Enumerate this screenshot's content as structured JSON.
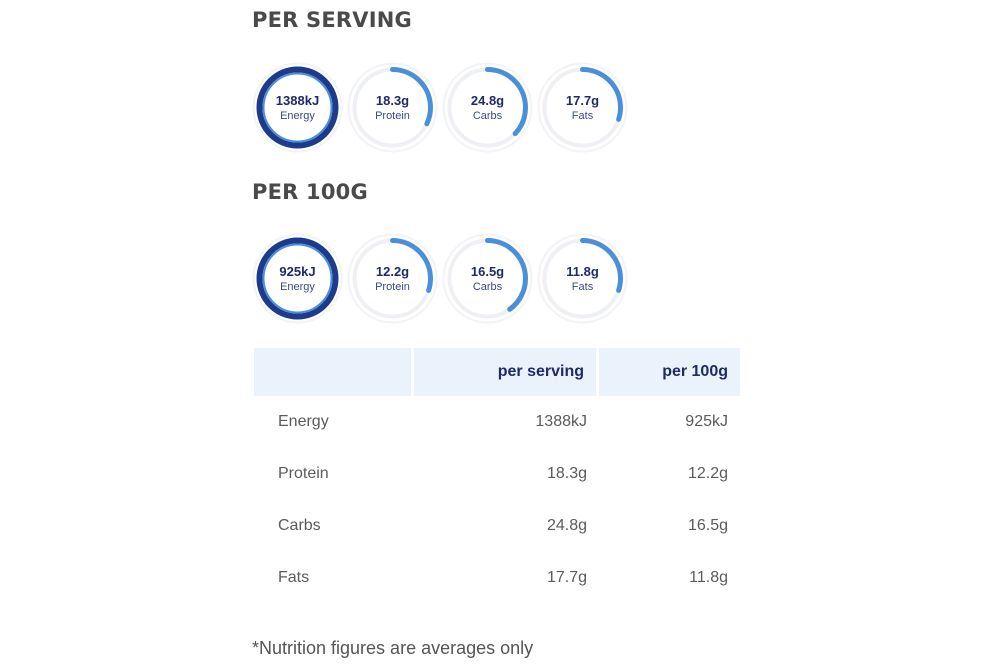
{
  "sections": {
    "per_serving": {
      "title": "PER SERVING",
      "rings": [
        {
          "value": "1388kJ",
          "label": "Energy",
          "progress": 1.0,
          "strong": true
        },
        {
          "value": "18.3g",
          "label": "Protein",
          "progress": 0.32,
          "strong": false
        },
        {
          "value": "24.8g",
          "label": "Carbs",
          "progress": 0.37,
          "strong": false
        },
        {
          "value": "17.7g",
          "label": "Fats",
          "progress": 0.3,
          "strong": false
        }
      ]
    },
    "per_100g": {
      "title": "PER 100G",
      "rings": [
        {
          "value": "925kJ",
          "label": "Energy",
          "progress": 1.0,
          "strong": true
        },
        {
          "value": "12.2g",
          "label": "Protein",
          "progress": 0.3,
          "strong": false
        },
        {
          "value": "16.5g",
          "label": "Carbs",
          "progress": 0.4,
          "strong": false
        },
        {
          "value": "11.8g",
          "label": "Fats",
          "progress": 0.3,
          "strong": false
        }
      ]
    }
  },
  "table": {
    "headers": [
      "",
      "per serving",
      "per 100g"
    ],
    "rows": [
      {
        "name": "Energy",
        "serving": "1388kJ",
        "per100": "925kJ"
      },
      {
        "name": "Protein",
        "serving": "18.3g",
        "per100": "12.2g"
      },
      {
        "name": "Carbs",
        "serving": "24.8g",
        "per100": "16.5g"
      },
      {
        "name": "Fats",
        "serving": "17.7g",
        "per100": "11.8g"
      }
    ]
  },
  "footnote": "*Nutrition figures are averages only",
  "colors": {
    "ring_dark": "#1e3a8a",
    "ring_light": "#4a90d9",
    "ring_track": "#eef0f3",
    "header_bg": "#eaf3fb",
    "value_text": "#1f2a6b"
  }
}
